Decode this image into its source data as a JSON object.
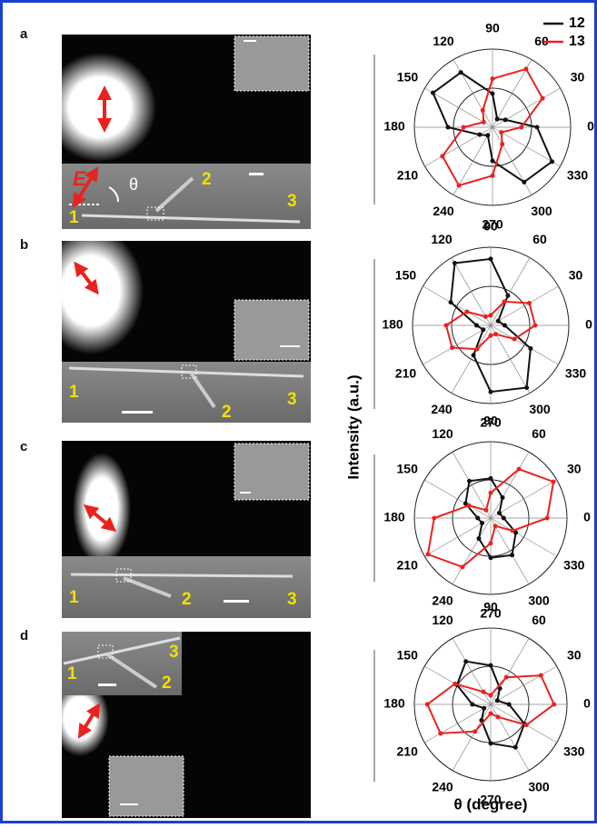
{
  "figure": {
    "panels": [
      "a",
      "b",
      "c",
      "d"
    ],
    "y_label": "Intensity (a.u.)",
    "x_label": "θ (degree)",
    "field_label": "E",
    "angle_label": "θ",
    "image_labels": [
      [
        "1",
        "2",
        "3"
      ],
      [
        "1",
        "2",
        "3"
      ],
      [
        "1",
        "2",
        "3"
      ],
      [
        "3",
        "1",
        "2"
      ]
    ]
  },
  "chart_data": [
    {
      "type": "polar",
      "rlim": [
        0,
        1
      ],
      "rticks": [
        0.5,
        1
      ],
      "x": [
        0,
        30,
        60,
        90,
        120,
        150,
        180,
        210,
        240,
        270,
        300,
        330
      ],
      "angle_ticks": [
        0,
        30,
        60,
        90,
        120,
        150,
        180,
        210,
        240,
        270,
        300,
        330
      ],
      "series": [
        {
          "name": "12",
          "color": "#111111",
          "values": [
            0.57,
            0.19,
            0.12,
            0.43,
            0.81,
            0.88,
            0.57,
            0.19,
            0.12,
            0.43,
            0.81,
            0.88
          ]
        },
        {
          "name": "13",
          "color": "#e8231f",
          "values": [
            0.37,
            0.74,
            0.86,
            0.62,
            0.25,
            0.13,
            0.37,
            0.74,
            0.86,
            0.62,
            0.25,
            0.13
          ]
        }
      ]
    },
    {
      "type": "polar",
      "rlim": [
        0,
        1
      ],
      "rticks": [
        0.5,
        1
      ],
      "x": [
        0,
        30,
        60,
        90,
        120,
        150,
        180,
        210,
        240,
        270,
        300,
        330
      ],
      "angle_ticks": [
        0,
        30,
        60,
        90,
        120,
        150,
        180,
        210,
        240,
        270,
        300,
        330
      ],
      "series": [
        {
          "color": "#111111",
          "values": [
            0.18,
            0.11,
            0.44,
            0.85,
            0.92,
            0.59,
            0.18,
            0.11,
            0.44,
            0.85,
            0.92,
            0.59
          ]
        },
        {
          "color": "#e8231f",
          "values": [
            0.57,
            0.57,
            0.35,
            0.13,
            0.13,
            0.35,
            0.57,
            0.57,
            0.35,
            0.13,
            0.13,
            0.35
          ]
        }
      ]
    },
    {
      "type": "polar",
      "rlim": [
        0,
        1
      ],
      "rticks": [
        0.5,
        1
      ],
      "x": [
        0,
        30,
        60,
        90,
        120,
        150,
        180,
        210,
        240,
        270,
        300,
        330
      ],
      "angle_ticks": [
        0,
        30,
        60,
        90,
        120,
        150,
        180,
        210,
        240,
        270,
        300,
        330
      ],
      "series": [
        {
          "color": "#111111",
          "values": [
            0.17,
            0.13,
            0.31,
            0.52,
            0.56,
            0.38,
            0.17,
            0.13,
            0.31,
            0.52,
            0.56,
            0.38
          ]
        },
        {
          "color": "#e8231f",
          "values": [
            0.74,
            0.95,
            0.74,
            0.33,
            0.12,
            0.33,
            0.74,
            0.95,
            0.74,
            0.33,
            0.12,
            0.33
          ]
        }
      ]
    },
    {
      "type": "polar",
      "rlim": [
        0,
        1
      ],
      "rticks": [
        0.5,
        1
      ],
      "x": [
        0,
        30,
        60,
        90,
        120,
        150,
        180,
        210,
        240,
        270,
        300,
        330
      ],
      "angle_ticks": [
        0,
        30,
        60,
        90,
        120,
        150,
        180,
        210,
        240,
        270,
        300,
        330
      ],
      "series": [
        {
          "color": "#111111",
          "values": [
            0.24,
            0.1,
            0.24,
            0.51,
            0.65,
            0.51,
            0.24,
            0.1,
            0.24,
            0.51,
            0.65,
            0.51
          ]
        },
        {
          "color": "#e8231f",
          "values": [
            0.83,
            0.76,
            0.41,
            0.12,
            0.19,
            0.54,
            0.83,
            0.76,
            0.41,
            0.12,
            0.19,
            0.54
          ]
        }
      ]
    }
  ]
}
